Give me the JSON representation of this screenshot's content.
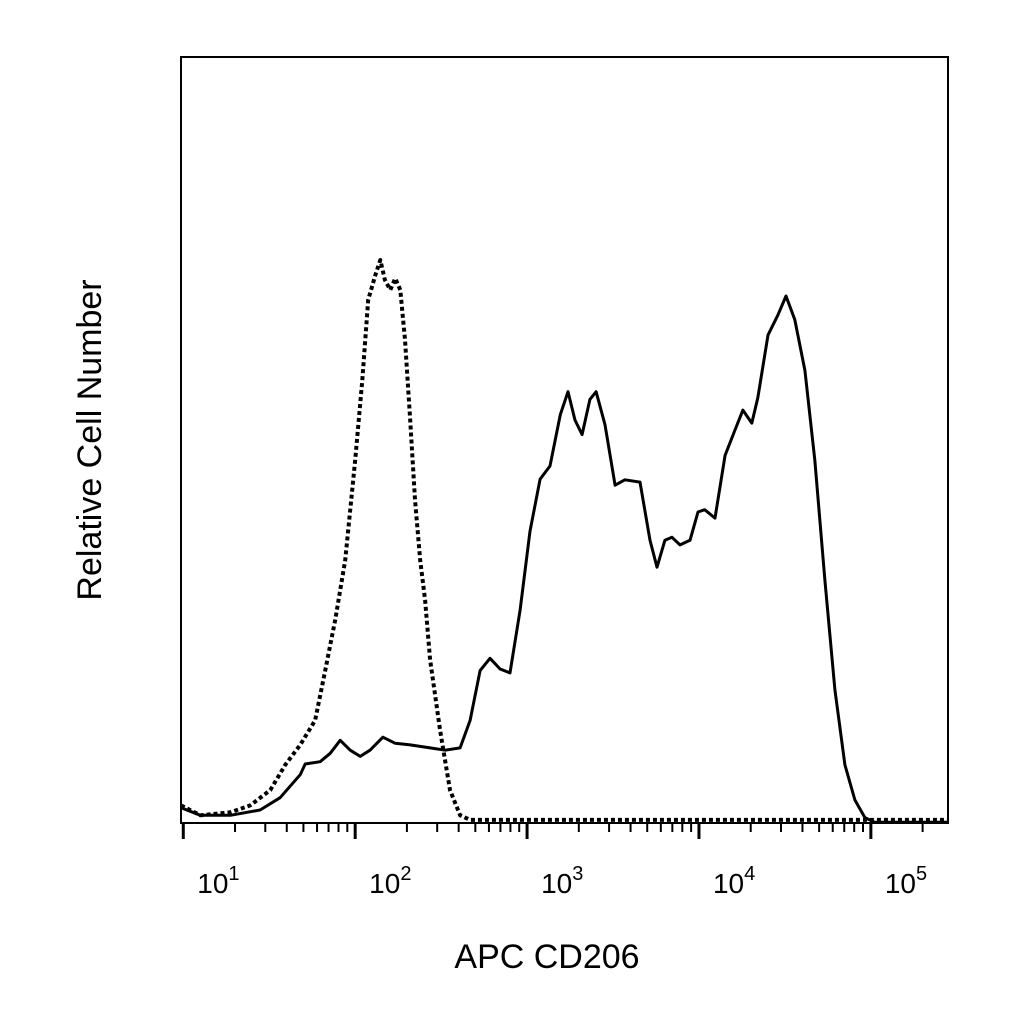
{
  "chart_data": {
    "type": "line",
    "x_label": "APC CD206",
    "y_label": "Relative Cell Number",
    "xscale": "log",
    "xlim": [
      9.7,
      281000
    ],
    "ylim": [
      0,
      100
    ],
    "xticks": [
      {
        "value": 10,
        "label": "10",
        "sup": "1"
      },
      {
        "value": 100,
        "label": "10",
        "sup": "2"
      },
      {
        "value": 1000,
        "label": "10",
        "sup": "3"
      },
      {
        "value": 10000,
        "label": "10",
        "sup": "4"
      },
      {
        "value": 100000,
        "label": "10",
        "sup": "5"
      }
    ],
    "xminorticks": [
      20,
      30,
      40,
      50,
      60,
      70,
      80,
      90,
      200,
      300,
      400,
      500,
      600,
      700,
      800,
      900,
      2000,
      3000,
      4000,
      5000,
      6000,
      7000,
      8000,
      9000,
      20000,
      30000,
      40000,
      50000,
      60000,
      70000,
      80000,
      90000,
      200000
    ],
    "series": [
      {
        "color": "#000000",
        "style": "solid",
        "x": [
          9.7,
          12.6,
          18.8,
          28,
          36.6,
          47.9,
          51.2,
          62.6,
          71.6,
          81.8,
          93.5,
          107,
          122,
          145,
          171,
          209,
          273,
          334,
          408,
          466,
          533,
          609,
          697,
          796,
          910,
          1040,
          1190,
          1360,
          1560,
          1730,
          1900,
          2090,
          2320,
          2520,
          2840,
          3250,
          3710,
          4540,
          5190,
          5700,
          6340,
          6970,
          7760,
          8870,
          9870,
          10800,
          12400,
          14200,
          16200,
          18000,
          20300,
          22000,
          25200,
          28800,
          32100,
          36100,
          41300,
          47200,
          54000,
          61800,
          70600,
          80700,
          92300,
          105000,
          281000
        ],
        "values": [
          2.0,
          1.0,
          1.0,
          1.7,
          3.3,
          6.3,
          7.7,
          8.0,
          9.1,
          10.8,
          9.5,
          8.7,
          9.5,
          11.2,
          10.4,
          10.2,
          9.8,
          9.5,
          9.8,
          13.4,
          19.9,
          21.5,
          20.1,
          19.6,
          27.7,
          38.1,
          44.9,
          46.6,
          53.3,
          56.3,
          52.6,
          50.7,
          55.3,
          56.3,
          52.0,
          44.1,
          44.8,
          44.5,
          36.9,
          33.4,
          36.9,
          37.3,
          36.3,
          36.9,
          40.6,
          40.9,
          39.8,
          48.0,
          51.3,
          53.9,
          52.2,
          55.5,
          63.7,
          66.3,
          68.8,
          65.7,
          59.1,
          47.4,
          31.7,
          17.4,
          7.6,
          3.0,
          0.7,
          0.1,
          0.1
        ]
      },
      {
        "color": "#000000",
        "style": "dotted",
        "x": [
          9.7,
          12.6,
          18.8,
          24.5,
          32.1,
          39.2,
          47.9,
          58.5,
          66.9,
          76.5,
          87.5,
          100,
          110,
          119,
          131,
          140,
          149,
          160,
          171,
          183,
          195,
          209,
          223,
          239,
          255,
          273,
          312,
          356,
          408,
          466,
          281000
        ],
        "values": [
          2.3,
          1.0,
          1.4,
          2.3,
          4.3,
          7.6,
          10.2,
          13.4,
          19.9,
          26.5,
          34.3,
          47.4,
          57.8,
          68.3,
          71.5,
          73.5,
          70.9,
          69.6,
          71.1,
          69.6,
          63.1,
          52.6,
          42.2,
          34.3,
          29.1,
          21.3,
          12.1,
          4.3,
          1.0,
          0.4,
          0.4
        ]
      }
    ]
  }
}
